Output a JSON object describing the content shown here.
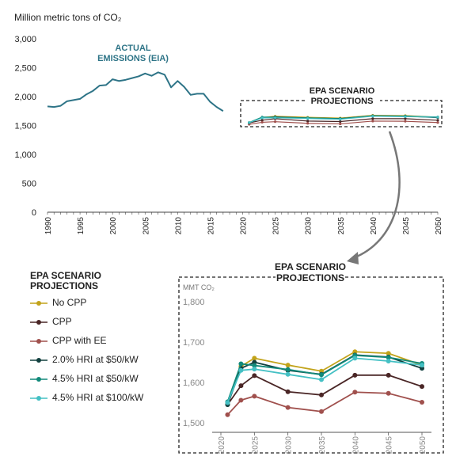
{
  "chart_data": [
    {
      "type": "line",
      "ylabel": "Million metric tons of CO₂",
      "ylim": [
        0,
        3000
      ],
      "yticks": [
        "0",
        "500",
        "1,000",
        "1,500",
        "2,000",
        "2,500",
        "3,000"
      ],
      "xticks": [
        "1990",
        "1995",
        "2000",
        "2005",
        "2010",
        "2015",
        "2020",
        "2025",
        "2030",
        "2035",
        "2040",
        "2045",
        "2050"
      ],
      "xlim": [
        1990,
        2050
      ],
      "grid": false,
      "annotations": {
        "actual_1": "ACTUAL",
        "actual_2": "EMISSIONS (EIA)",
        "epa_1": "EPA SCENARIO",
        "epa_2": "PROJECTIONS"
      },
      "actual": {
        "name": "ACTUAL EMISSIONS (EIA)",
        "color": "#2e7487",
        "x": [
          1990,
          1991,
          1992,
          1993,
          1994,
          1995,
          1996,
          1997,
          1998,
          1999,
          2000,
          2001,
          2002,
          2003,
          2004,
          2005,
          2006,
          2007,
          2008,
          2009,
          2010,
          2011,
          2012,
          2013,
          2014,
          2015,
          2016,
          2017
        ],
        "y": [
          1830,
          1820,
          1840,
          1920,
          1940,
          1960,
          2040,
          2100,
          2190,
          2200,
          2300,
          2270,
          2290,
          2320,
          2350,
          2400,
          2360,
          2420,
          2380,
          2160,
          2270,
          2170,
          2030,
          2050,
          2050,
          1910,
          1820,
          1750
        ]
      },
      "series": [
        {
          "name": "No CPP",
          "color": "#c2a31a",
          "x": [
            2021,
            2023,
            2025,
            2030,
            2035,
            2040,
            2045,
            2050
          ],
          "y": [
            1550,
            1640,
            1660,
            1643,
            1628,
            1676,
            1672,
            1643
          ]
        },
        {
          "name": "CPP",
          "color": "#4a2626",
          "x": [
            2021,
            2023,
            2025,
            2030,
            2035,
            2040,
            2045,
            2050
          ],
          "y": [
            1545,
            1592,
            1617,
            1577,
            1569,
            1618,
            1618,
            1590
          ]
        },
        {
          "name": "CPP with EE",
          "color": "#a0504d",
          "x": [
            2021,
            2023,
            2025,
            2030,
            2035,
            2040,
            2045,
            2050
          ],
          "y": [
            1520,
            1556,
            1566,
            1538,
            1528,
            1576,
            1573,
            1551
          ]
        },
        {
          "name": "2.0% HRI at $50/kW",
          "color": "#12403f",
          "x": [
            2021,
            2023,
            2025,
            2030,
            2035,
            2040,
            2045,
            2050
          ],
          "y": [
            1545,
            1635,
            1650,
            1630,
            1620,
            1668,
            1663,
            1635
          ]
        },
        {
          "name": "4.5% HRI at $50/kW",
          "color": "#11897a",
          "x": [
            2021,
            2023,
            2025,
            2030,
            2035,
            2040,
            2045,
            2050
          ],
          "y": [
            1552,
            1646,
            1642,
            1632,
            1619,
            1667,
            1662,
            1647
          ]
        },
        {
          "name": "4.5% HRI at $100/kW",
          "color": "#44c0c4",
          "x": [
            2021,
            2023,
            2025,
            2030,
            2035,
            2040,
            2045,
            2050
          ],
          "y": [
            1550,
            1630,
            1633,
            1620,
            1607,
            1660,
            1653,
            1643
          ]
        }
      ]
    },
    {
      "type": "line",
      "title_1": "EPA SCENARIO",
      "title_2": "PROJECTIONS",
      "ylabel": "MMT CO₂",
      "ylim": [
        1500,
        1800
      ],
      "yticks": [
        "1,500",
        "1,600",
        "1,700",
        "1,800"
      ],
      "xticks": [
        "2020",
        "2025",
        "2030",
        "2035",
        "2040",
        "2045",
        "2050"
      ],
      "xlim": [
        2020,
        2050
      ],
      "grid": false,
      "legend_title_1": "EPA SCENARIO",
      "legend_title_2": "PROJECTIONS",
      "legend_placement": "left"
    }
  ]
}
